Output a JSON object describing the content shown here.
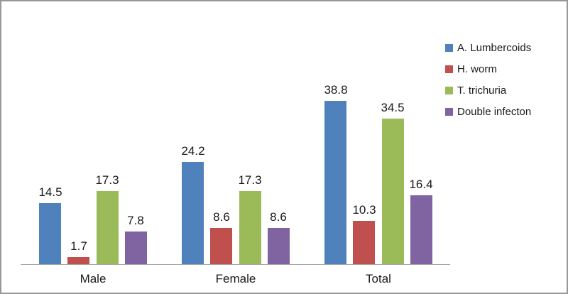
{
  "chart_data": {
    "type": "bar",
    "categories": [
      "Male",
      "Female",
      "Total"
    ],
    "series": [
      {
        "name": "A. Lumbercoids",
        "color": "#4F81BD",
        "values": [
          14.5,
          24.2,
          38.8
        ]
      },
      {
        "name": "H. worm",
        "color": "#C0504D",
        "values": [
          1.7,
          8.6,
          10.3
        ]
      },
      {
        "name": "T. trichuria",
        "color": "#9BBB59",
        "values": [
          17.3,
          17.3,
          34.5
        ]
      },
      {
        "name": "Double infecton",
        "color": "#8064A2",
        "values": [
          7.8,
          8.6,
          16.4
        ]
      }
    ],
    "title": "",
    "xlabel": "",
    "ylabel": "",
    "ylim": [
      0,
      40
    ],
    "grid": false,
    "data_labels": true,
    "legend_position": "right"
  },
  "colors": {
    "axis_line": "#A6A6A6",
    "figure_border": "#979797",
    "label_text": "#1A1A1A",
    "background": "#FFFFFF"
  }
}
